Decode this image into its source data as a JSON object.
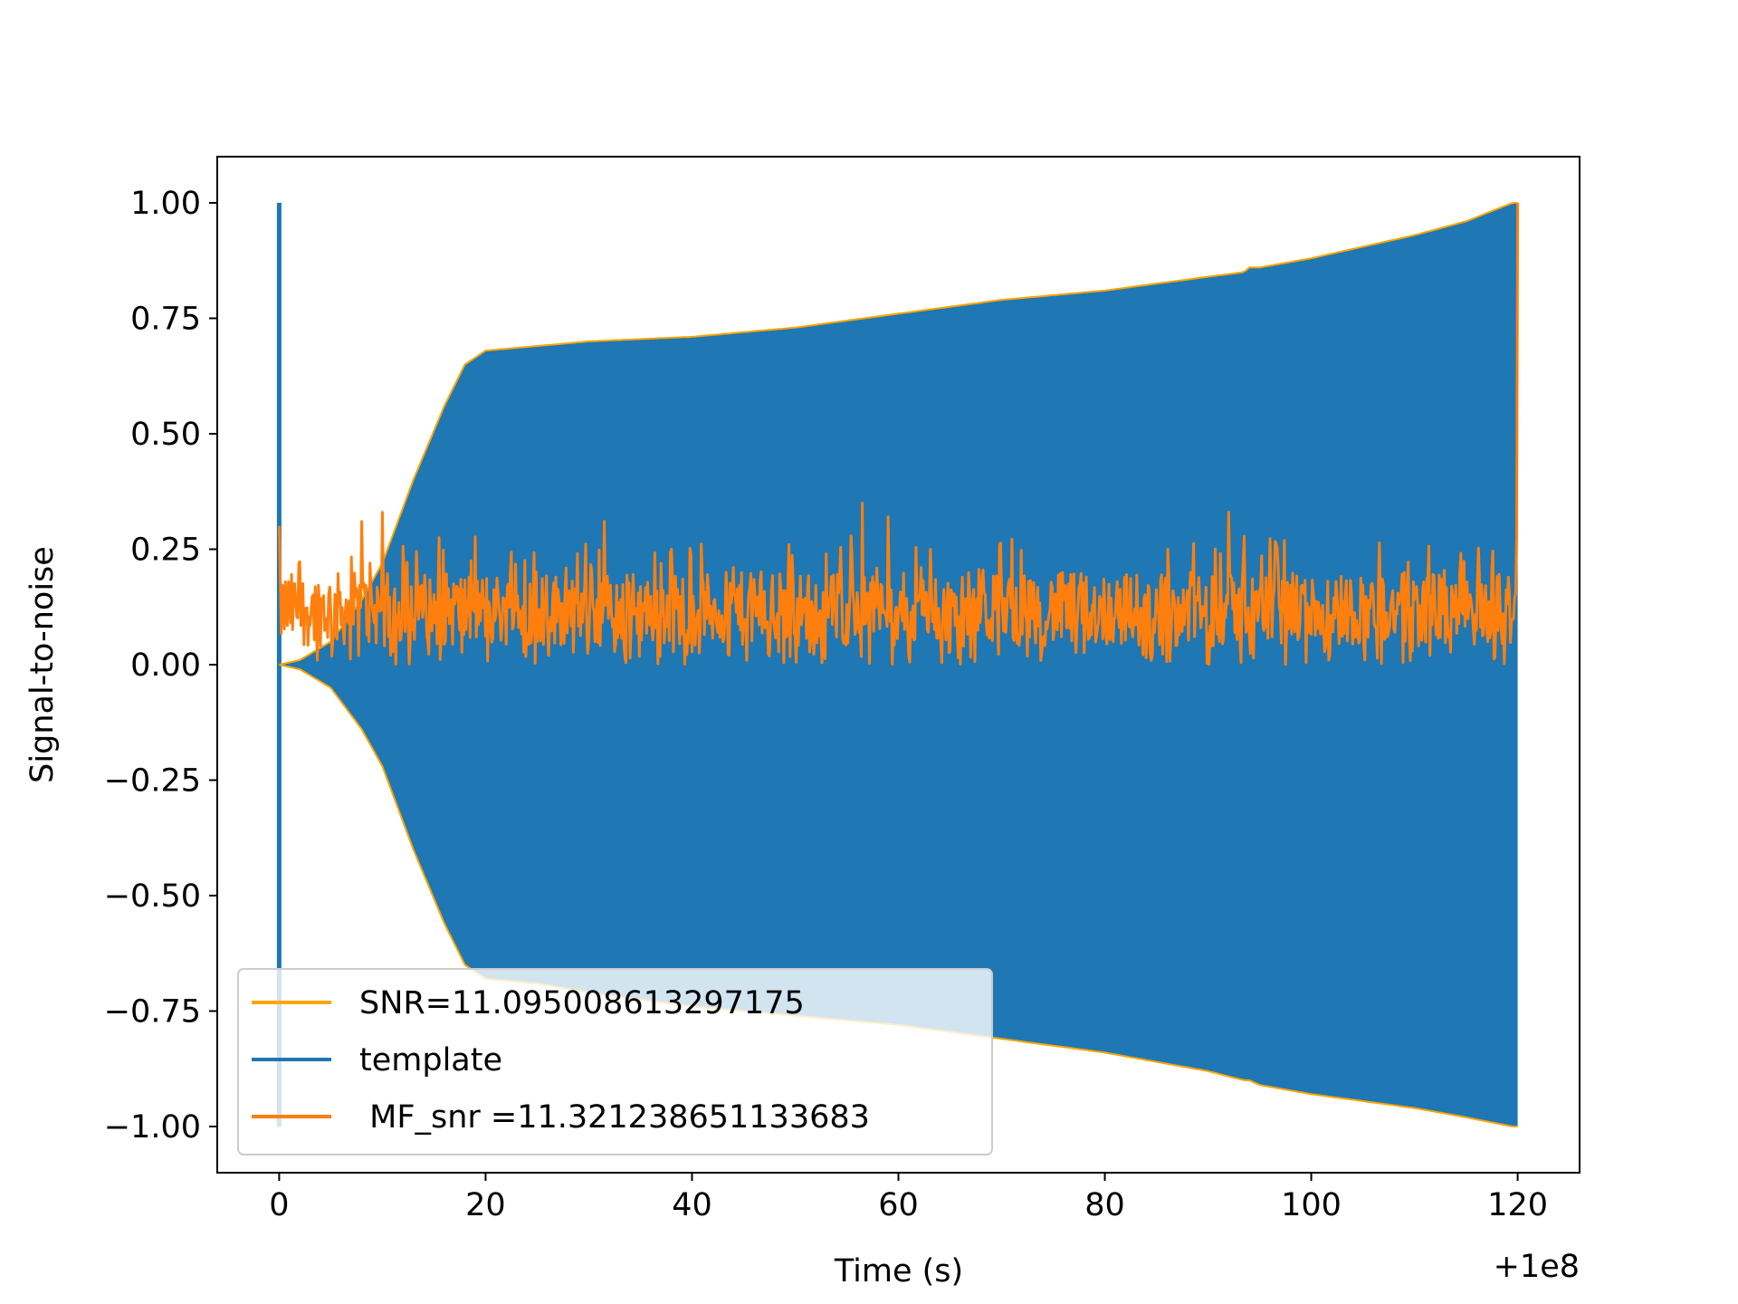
{
  "chart_data": {
    "type": "line",
    "title": "",
    "xlabel": "Time (s)",
    "ylabel": "Signal-to-noise",
    "x_offset_label": "+1e8",
    "xlim": [
      -6,
      126
    ],
    "ylim": [
      -1.1,
      1.1
    ],
    "xticks": [
      0,
      20,
      40,
      60,
      80,
      100,
      120
    ],
    "xtick_labels": [
      "0",
      "20",
      "40",
      "60",
      "80",
      "100",
      "120"
    ],
    "yticks": [
      1.0,
      0.75,
      0.5,
      0.25,
      0.0,
      -0.25,
      -0.5,
      -0.75,
      -1.0
    ],
    "ytick_labels": [
      "1.00",
      "0.75",
      "0.50",
      "0.25",
      "0.00",
      "−0.25",
      "−0.50",
      "−0.75",
      "−1.00"
    ],
    "grid": false,
    "legend_position": "lower-left",
    "series": [
      {
        "name": "SNR=11.095008613297175",
        "color": "#ffa500",
        "style": "envelope outline of template",
        "x": [
          0,
          2,
          5,
          8,
          10,
          13,
          16,
          18,
          20,
          25,
          30,
          40,
          50,
          60,
          70,
          80,
          90,
          93.5,
          94,
          95,
          100,
          110,
          115,
          119.5,
          120
        ],
        "upper": [
          0.0,
          0.01,
          0.05,
          0.14,
          0.22,
          0.4,
          0.56,
          0.65,
          0.68,
          0.69,
          0.7,
          0.71,
          0.73,
          0.76,
          0.79,
          0.81,
          0.84,
          0.85,
          0.86,
          0.86,
          0.88,
          0.93,
          0.96,
          1.0,
          1.0
        ],
        "lower": [
          0.0,
          -0.01,
          -0.05,
          -0.14,
          -0.22,
          -0.4,
          -0.56,
          -0.65,
          -0.68,
          -0.69,
          -0.71,
          -0.74,
          -0.76,
          -0.78,
          -0.81,
          -0.84,
          -0.88,
          -0.9,
          -0.9,
          -0.91,
          -0.93,
          -0.96,
          -0.98,
          -1.0,
          -1.0
        ]
      },
      {
        "name": "template",
        "color": "#1f77b4",
        "style": "dense oscillation filling envelope",
        "x": [
          0,
          2,
          5,
          8,
          10,
          13,
          16,
          18,
          20,
          25,
          30,
          40,
          50,
          60,
          70,
          80,
          90,
          93.5,
          94,
          95,
          100,
          110,
          115,
          119.5,
          120
        ],
        "upper": [
          0.0,
          0.01,
          0.05,
          0.14,
          0.22,
          0.4,
          0.56,
          0.65,
          0.68,
          0.69,
          0.7,
          0.71,
          0.73,
          0.76,
          0.79,
          0.81,
          0.84,
          0.85,
          0.86,
          0.86,
          0.88,
          0.93,
          0.96,
          1.0,
          1.0
        ],
        "lower": [
          0.0,
          -0.01,
          -0.05,
          -0.14,
          -0.22,
          -0.4,
          -0.56,
          -0.65,
          -0.68,
          -0.69,
          -0.71,
          -0.74,
          -0.76,
          -0.78,
          -0.81,
          -0.84,
          -0.88,
          -0.9,
          -0.9,
          -0.91,
          -0.93,
          -0.96,
          -0.98,
          -1.0,
          -1.0
        ],
        "spikes": [
          {
            "x": 0.0,
            "y": 1.0
          },
          {
            "x": 0.0,
            "y": -1.0
          }
        ]
      },
      {
        "name": " MF_snr =11.321238651133683",
        "color": "#ff7f0e",
        "style": "noisy series fluctuating between 0.0 and ~0.3",
        "typical_range": [
          0.0,
          0.28
        ],
        "notable_peaks": [
          {
            "x": 0.0,
            "y": 0.3
          },
          {
            "x": 8.0,
            "y": 0.31
          },
          {
            "x": 10.0,
            "y": 0.33
          },
          {
            "x": 31.5,
            "y": 0.31
          },
          {
            "x": 56.5,
            "y": 0.35
          },
          {
            "x": 59.0,
            "y": 0.32
          },
          {
            "x": 92.0,
            "y": 0.33
          },
          {
            "x": 120.0,
            "y": 1.0
          }
        ]
      }
    ]
  }
}
